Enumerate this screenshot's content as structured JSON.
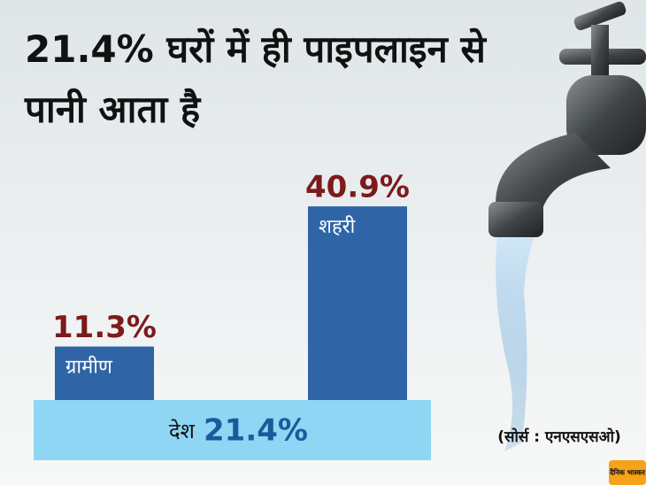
{
  "chart_data": {
    "type": "bar",
    "title": "21.4% घरों में ही पाइपलाइन से पानी आता है",
    "categories": [
      "ग्रामीण",
      "शहरी"
    ],
    "values": [
      11.3,
      40.9
    ],
    "value_labels": [
      "11.3%",
      "40.9%"
    ],
    "color": "#2f65a7",
    "national": {
      "name": "देश",
      "value": 21.4,
      "value_label": "21.4%"
    },
    "source": "(सोर्स : एनएसएसओ)",
    "brand": "दैनिक भास्कर"
  }
}
